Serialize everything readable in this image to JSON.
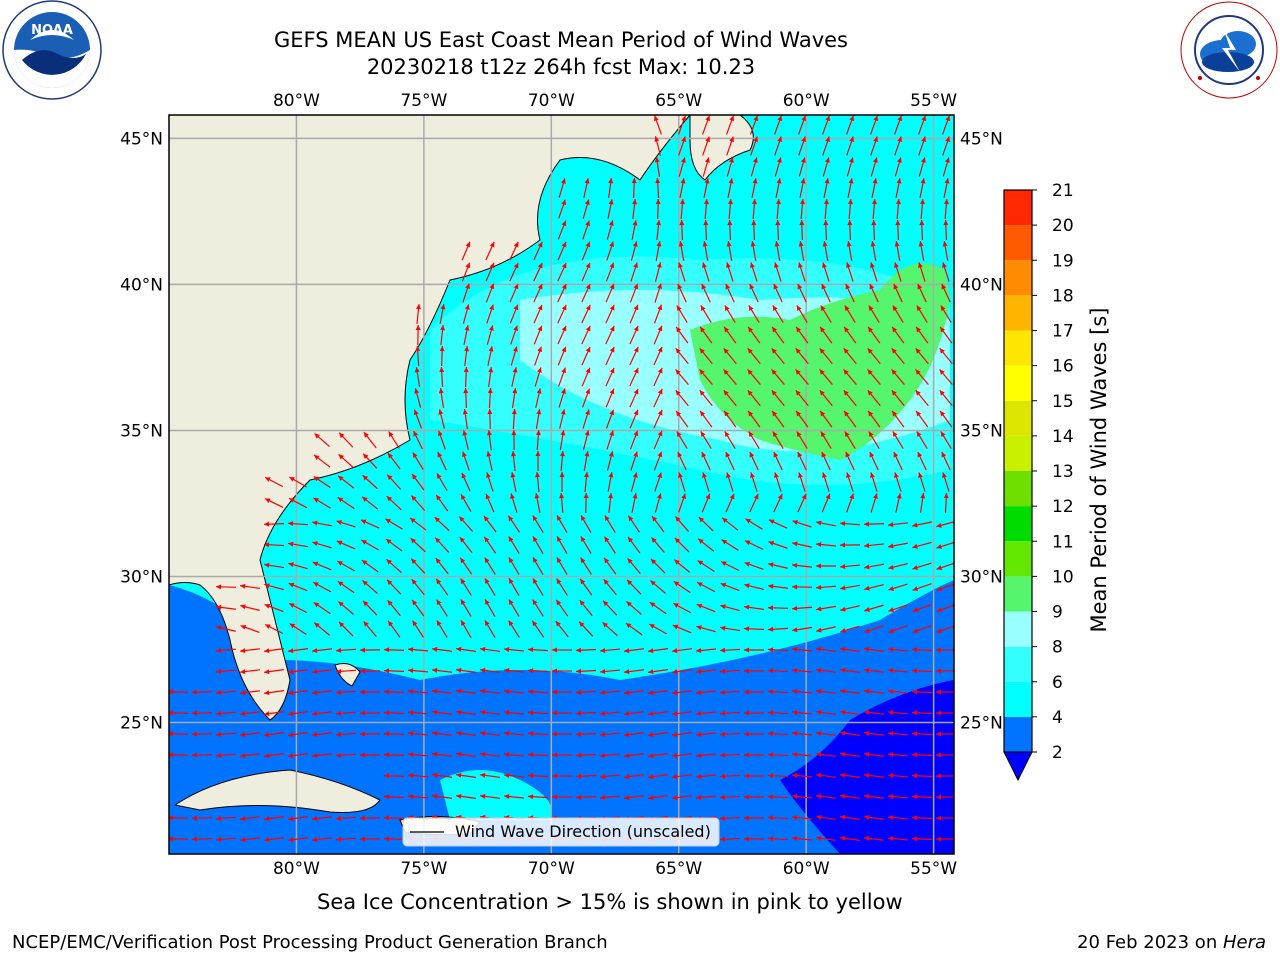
{
  "title": {
    "line1": "GEFS MEAN US East Coast Mean Period of Wind Waves",
    "line2": "20230218 t12z 264h fcst   Max: 10.23"
  },
  "logos": {
    "noaa_text": "NOAA",
    "noaa_ring": "NATIONAL OCEANIC AND ATMOSPHERIC ADMINISTRATION · U.S. DEPARTMENT OF COMMERCE",
    "nws_ring": "NATIONAL WEATHER SERVICE"
  },
  "map": {
    "lon_labels": [
      "80°W",
      "75°W",
      "70°W",
      "65°W",
      "60°W",
      "55°W"
    ],
    "lat_labels": [
      "45°N",
      "40°N",
      "35°N",
      "30°N",
      "25°N"
    ],
    "lon_values": [
      -80,
      -75,
      -70,
      -65,
      -60,
      -55
    ],
    "lat_values": [
      45,
      40,
      35,
      30,
      25
    ],
    "extent": {
      "lon_min": -85,
      "lon_max": -54.2,
      "lat_min": 20.5,
      "lat_max": 45.8
    },
    "legend_label": "Wind Wave Direction (unscaled)",
    "vector_color": "#ff0000",
    "land_color": "#efedde"
  },
  "colorbar": {
    "label": "Mean Period of Wind Waves [s]",
    "ticks": [
      "2",
      "4",
      "6",
      "8",
      "9",
      "10",
      "11",
      "12",
      "13",
      "14",
      "15",
      "16",
      "17",
      "18",
      "19",
      "20",
      "21"
    ],
    "colors": [
      "#0073ff",
      "#00ffff",
      "#33ffff",
      "#99ffff",
      "#55f56e",
      "#62e800",
      "#00dc00",
      "#6ee000",
      "#c8f000",
      "#dce600",
      "#ffff00",
      "#ffe600",
      "#ffb400",
      "#ff8c00",
      "#ff5a00",
      "#ff2800",
      "#ff0000"
    ],
    "extend_color": "#0000ff"
  },
  "caption": "Sea Ice Concentration > 15% is shown in pink to yellow",
  "footer": {
    "left": "NCEP/EMC/Verification Post Processing Product Generation Branch",
    "right_prefix": "20 Feb 2023 on ",
    "right_host": "Hera"
  }
}
